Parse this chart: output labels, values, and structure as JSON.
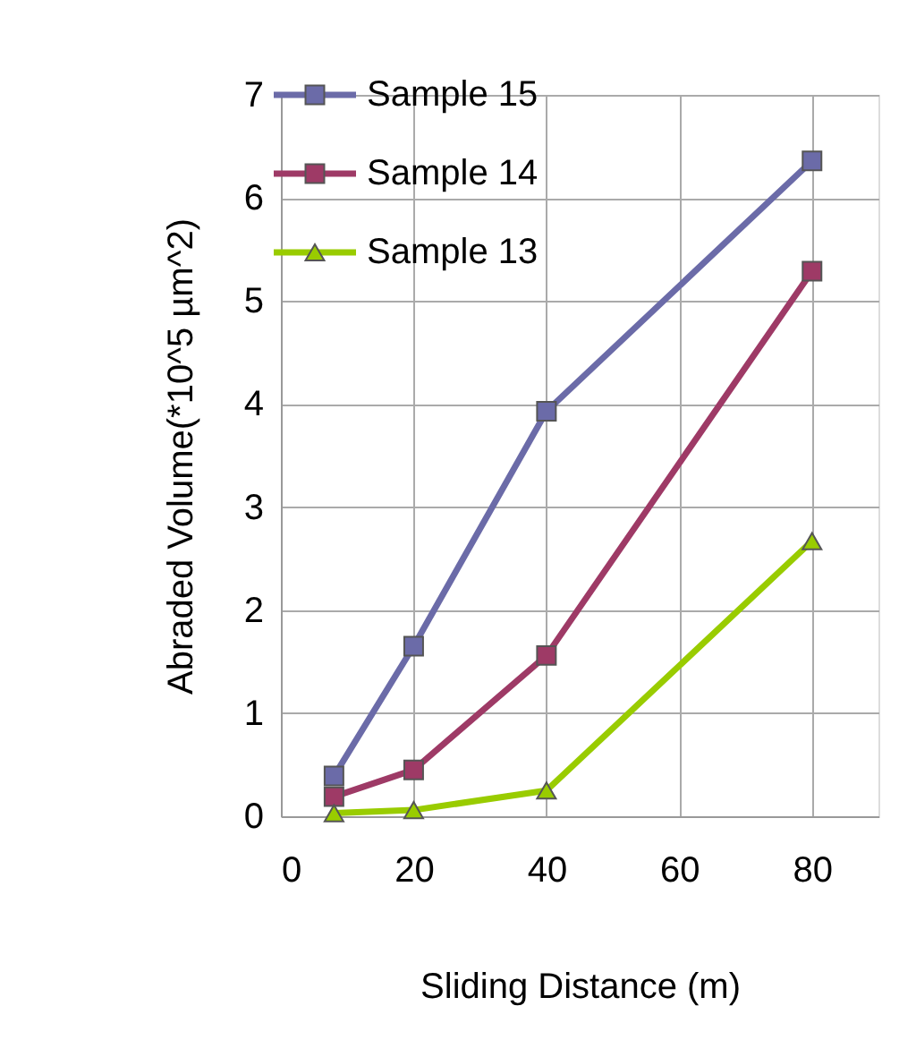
{
  "chart_data": {
    "type": "line",
    "xlabel": "Sliding Distance (m)",
    "ylabel": "Abraded Volume(*10^5 µm^2)",
    "xlim": [
      0,
      90
    ],
    "xticks": [
      0,
      20,
      40,
      60,
      80
    ],
    "ylim": [
      0,
      7
    ],
    "yticks": [
      0,
      1,
      2,
      3,
      4,
      5,
      6,
      7
    ],
    "grid": true,
    "legend": "top left",
    "line_style": "solid",
    "series": [
      {
        "name": "Sample 15",
        "color": "#6b6ba8",
        "marker": "square",
        "x": [
          8,
          20,
          40,
          80
        ],
        "values": [
          0.39,
          1.65,
          3.93,
          6.36
        ]
      },
      {
        "name": "Sample 14",
        "color": "#9e3a66",
        "marker": "square",
        "x": [
          8,
          20,
          40,
          80
        ],
        "values": [
          0.19,
          0.45,
          1.56,
          5.29
        ]
      },
      {
        "name": "Sample 13",
        "color": "#99cc00",
        "marker": "triangle",
        "x": [
          8,
          20,
          40,
          80
        ],
        "values": [
          0.03,
          0.06,
          0.25,
          2.67
        ]
      }
    ]
  }
}
